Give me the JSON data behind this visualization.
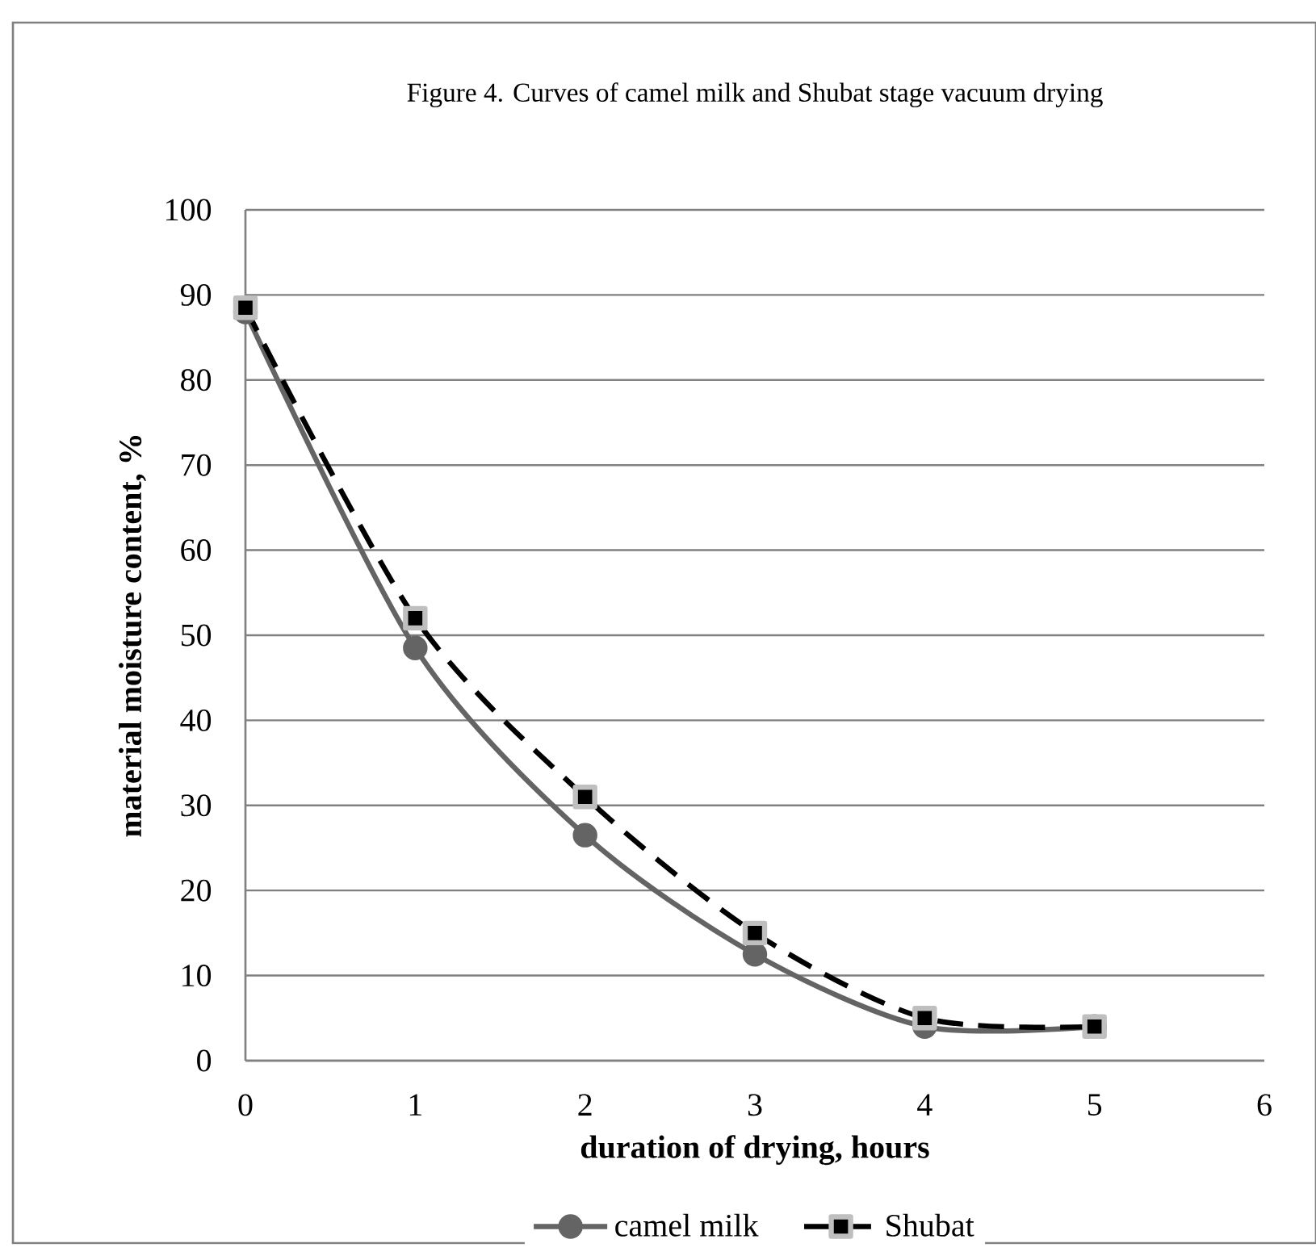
{
  "chart_data": {
    "type": "line",
    "title": "Figure 4. Curves of camel milk and Shubat stage vacuum drying",
    "xlabel": "duration of drying, hours",
    "ylabel": "material moisture content, %",
    "x": [
      0,
      1,
      2,
      3,
      4,
      5
    ],
    "series": [
      {
        "name": "camel milk",
        "color": "#646464",
        "values": [
          88,
          48.5,
          26.5,
          12.5,
          4,
          4
        ],
        "marker": "circle",
        "line_style": "solid"
      },
      {
        "name": "Shubat",
        "color": "#000000",
        "values": [
          88.5,
          52,
          31,
          15,
          5,
          4
        ],
        "marker": "square",
        "line_style": "dashed"
      }
    ],
    "xlim": [
      0,
      6
    ],
    "xticks": [
      0,
      1,
      2,
      3,
      4,
      5,
      6
    ],
    "ylim": [
      0,
      100
    ],
    "yticks": [
      0,
      10,
      20,
      30,
      40,
      50,
      60,
      70,
      80,
      90,
      100
    ],
    "grid": "y",
    "legend": "bottom"
  }
}
